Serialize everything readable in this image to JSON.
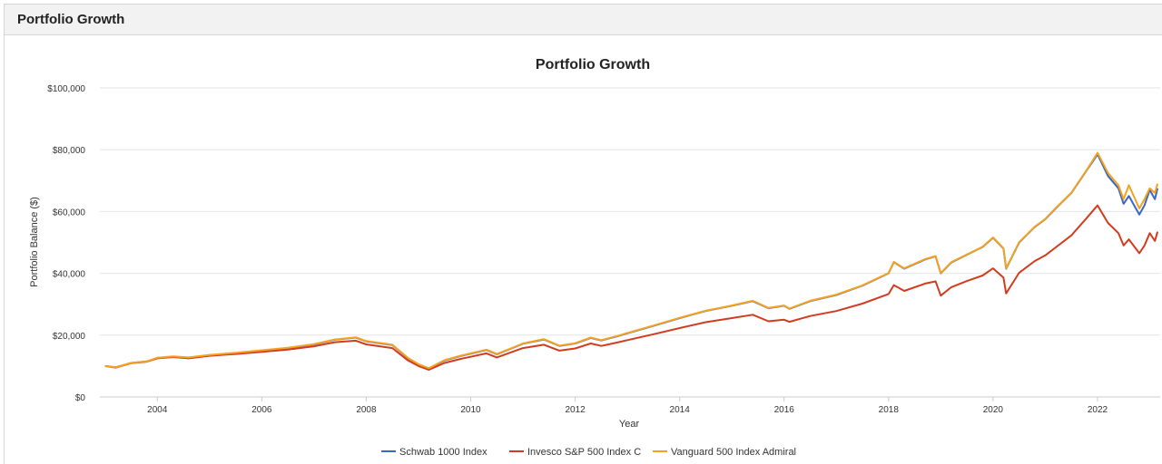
{
  "panel": {
    "title": "Portfolio Growth"
  },
  "chart_data": {
    "type": "line",
    "title": "Portfolio Growth",
    "xlabel": "Year",
    "ylabel": "Portfolio Balance ($)",
    "xlim": [
      2002.9,
      2023.2
    ],
    "ylim": [
      0,
      100000
    ],
    "x_ticks": [
      2004,
      2006,
      2008,
      2010,
      2012,
      2014,
      2016,
      2018,
      2020,
      2022
    ],
    "y_ticks": [
      0,
      20000,
      40000,
      60000,
      80000,
      100000
    ],
    "y_tick_labels": [
      "$0",
      "$20,000",
      "$40,000",
      "$60,000",
      "$80,000",
      "$100,000"
    ],
    "grid": true,
    "legend_position": "bottom-center",
    "series": [
      {
        "name": "Schwab 1000 Index",
        "color": "#3a67c4",
        "points": [
          [
            2003.0,
            10000
          ],
          [
            2003.2,
            9600
          ],
          [
            2003.5,
            11000
          ],
          [
            2003.8,
            11500
          ],
          [
            2004.0,
            12600
          ],
          [
            2004.3,
            13000
          ],
          [
            2004.6,
            12700
          ],
          [
            2005.0,
            13500
          ],
          [
            2005.5,
            14200
          ],
          [
            2006.0,
            15000
          ],
          [
            2006.5,
            15800
          ],
          [
            2007.0,
            17000
          ],
          [
            2007.4,
            18500
          ],
          [
            2007.8,
            19200
          ],
          [
            2008.0,
            18000
          ],
          [
            2008.5,
            16800
          ],
          [
            2008.8,
            12500
          ],
          [
            2009.0,
            10500
          ],
          [
            2009.2,
            9200
          ],
          [
            2009.5,
            11800
          ],
          [
            2009.8,
            13200
          ],
          [
            2010.0,
            14000
          ],
          [
            2010.3,
            15200
          ],
          [
            2010.5,
            13800
          ],
          [
            2010.8,
            15800
          ],
          [
            2011.0,
            17200
          ],
          [
            2011.4,
            18600
          ],
          [
            2011.7,
            16500
          ],
          [
            2012.0,
            17300
          ],
          [
            2012.3,
            19100
          ],
          [
            2012.5,
            18300
          ],
          [
            2012.8,
            19600
          ],
          [
            2013.0,
            20600
          ],
          [
            2013.5,
            23000
          ],
          [
            2014.0,
            25500
          ],
          [
            2014.5,
            27800
          ],
          [
            2015.0,
            29500
          ],
          [
            2015.4,
            31000
          ],
          [
            2015.7,
            28700
          ],
          [
            2016.0,
            29500
          ],
          [
            2016.1,
            28500
          ],
          [
            2016.5,
            31000
          ],
          [
            2017.0,
            33000
          ],
          [
            2017.5,
            36000
          ],
          [
            2018.0,
            40000
          ],
          [
            2018.1,
            43600
          ],
          [
            2018.3,
            41500
          ],
          [
            2018.7,
            44500
          ],
          [
            2018.9,
            45500
          ],
          [
            2019.0,
            40000
          ],
          [
            2019.2,
            43500
          ],
          [
            2019.5,
            46000
          ],
          [
            2019.8,
            48500
          ],
          [
            2020.0,
            51500
          ],
          [
            2020.2,
            48000
          ],
          [
            2020.25,
            41500
          ],
          [
            2020.5,
            50000
          ],
          [
            2020.8,
            55000
          ],
          [
            2021.0,
            57500
          ],
          [
            2021.2,
            61000
          ],
          [
            2021.5,
            66000
          ],
          [
            2021.8,
            73500
          ],
          [
            2022.0,
            78500
          ],
          [
            2022.2,
            71500
          ],
          [
            2022.4,
            67500
          ],
          [
            2022.5,
            62500
          ],
          [
            2022.6,
            65000
          ],
          [
            2022.8,
            59000
          ],
          [
            2022.9,
            62000
          ],
          [
            2023.0,
            67000
          ],
          [
            2023.1,
            64000
          ],
          [
            2023.15,
            67500
          ]
        ]
      },
      {
        "name": "Invesco S&P 500 Index C",
        "color": "#d13c1f",
        "points": [
          [
            2003.0,
            10000
          ],
          [
            2003.2,
            9500
          ],
          [
            2003.5,
            10900
          ],
          [
            2003.8,
            11400
          ],
          [
            2004.0,
            12500
          ],
          [
            2004.3,
            12900
          ],
          [
            2004.6,
            12500
          ],
          [
            2005.0,
            13300
          ],
          [
            2005.5,
            13900
          ],
          [
            2006.0,
            14600
          ],
          [
            2006.5,
            15300
          ],
          [
            2007.0,
            16400
          ],
          [
            2007.4,
            17700
          ],
          [
            2007.8,
            18200
          ],
          [
            2008.0,
            17000
          ],
          [
            2008.5,
            15800
          ],
          [
            2008.8,
            11800
          ],
          [
            2009.0,
            10000
          ],
          [
            2009.2,
            8800
          ],
          [
            2009.5,
            11000
          ],
          [
            2009.8,
            12300
          ],
          [
            2010.0,
            13000
          ],
          [
            2010.3,
            14100
          ],
          [
            2010.5,
            12800
          ],
          [
            2010.8,
            14600
          ],
          [
            2011.0,
            15800
          ],
          [
            2011.4,
            16900
          ],
          [
            2011.7,
            15000
          ],
          [
            2012.0,
            15700
          ],
          [
            2012.3,
            17300
          ],
          [
            2012.5,
            16500
          ],
          [
            2012.8,
            17600
          ],
          [
            2013.0,
            18400
          ],
          [
            2013.5,
            20300
          ],
          [
            2014.0,
            22300
          ],
          [
            2014.5,
            24200
          ],
          [
            2015.0,
            25500
          ],
          [
            2015.4,
            26600
          ],
          [
            2015.7,
            24500
          ],
          [
            2016.0,
            25000
          ],
          [
            2016.1,
            24300
          ],
          [
            2016.5,
            26200
          ],
          [
            2017.0,
            27800
          ],
          [
            2017.5,
            30200
          ],
          [
            2018.0,
            33300
          ],
          [
            2018.1,
            36200
          ],
          [
            2018.3,
            34300
          ],
          [
            2018.7,
            36700
          ],
          [
            2018.9,
            37400
          ],
          [
            2019.0,
            32800
          ],
          [
            2019.2,
            35500
          ],
          [
            2019.5,
            37500
          ],
          [
            2019.8,
            39300
          ],
          [
            2020.0,
            41600
          ],
          [
            2020.2,
            38600
          ],
          [
            2020.25,
            33500
          ],
          [
            2020.5,
            40200
          ],
          [
            2020.8,
            44000
          ],
          [
            2021.0,
            45800
          ],
          [
            2021.2,
            48400
          ],
          [
            2021.5,
            52300
          ],
          [
            2021.8,
            58000
          ],
          [
            2022.0,
            62000
          ],
          [
            2022.2,
            56300
          ],
          [
            2022.4,
            53000
          ],
          [
            2022.5,
            49000
          ],
          [
            2022.6,
            51000
          ],
          [
            2022.8,
            46500
          ],
          [
            2022.9,
            49000
          ],
          [
            2023.0,
            53000
          ],
          [
            2023.1,
            50500
          ],
          [
            2023.15,
            53500
          ]
        ]
      },
      {
        "name": "Vanguard 500 Index Admiral",
        "color": "#f4a21f",
        "points": [
          [
            2003.0,
            10000
          ],
          [
            2003.2,
            9600
          ],
          [
            2003.5,
            11000
          ],
          [
            2003.8,
            11500
          ],
          [
            2004.0,
            12700
          ],
          [
            2004.3,
            13100
          ],
          [
            2004.6,
            12800
          ],
          [
            2005.0,
            13600
          ],
          [
            2005.5,
            14300
          ],
          [
            2006.0,
            15100
          ],
          [
            2006.5,
            15900
          ],
          [
            2007.0,
            17100
          ],
          [
            2007.4,
            18600
          ],
          [
            2007.8,
            19300
          ],
          [
            2008.0,
            18100
          ],
          [
            2008.5,
            16900
          ],
          [
            2008.8,
            12600
          ],
          [
            2009.0,
            10600
          ],
          [
            2009.2,
            9300
          ],
          [
            2009.5,
            11900
          ],
          [
            2009.8,
            13300
          ],
          [
            2010.0,
            14100
          ],
          [
            2010.3,
            15300
          ],
          [
            2010.5,
            13900
          ],
          [
            2010.8,
            15900
          ],
          [
            2011.0,
            17300
          ],
          [
            2011.4,
            18700
          ],
          [
            2011.7,
            16600
          ],
          [
            2012.0,
            17400
          ],
          [
            2012.3,
            19200
          ],
          [
            2012.5,
            18400
          ],
          [
            2012.8,
            19700
          ],
          [
            2013.0,
            20700
          ],
          [
            2013.5,
            23100
          ],
          [
            2014.0,
            25600
          ],
          [
            2014.5,
            27900
          ],
          [
            2015.0,
            29600
          ],
          [
            2015.4,
            31100
          ],
          [
            2015.7,
            28800
          ],
          [
            2016.0,
            29600
          ],
          [
            2016.1,
            28600
          ],
          [
            2016.5,
            31100
          ],
          [
            2017.0,
            33100
          ],
          [
            2017.5,
            36100
          ],
          [
            2018.0,
            40100
          ],
          [
            2018.1,
            43700
          ],
          [
            2018.3,
            41600
          ],
          [
            2018.7,
            44600
          ],
          [
            2018.9,
            45600
          ],
          [
            2019.0,
            40100
          ],
          [
            2019.2,
            43600
          ],
          [
            2019.5,
            46100
          ],
          [
            2019.8,
            48600
          ],
          [
            2020.0,
            51600
          ],
          [
            2020.2,
            48100
          ],
          [
            2020.25,
            41600
          ],
          [
            2020.5,
            50100
          ],
          [
            2020.8,
            55100
          ],
          [
            2021.0,
            57600
          ],
          [
            2021.2,
            61100
          ],
          [
            2021.5,
            66100
          ],
          [
            2021.8,
            73600
          ],
          [
            2022.0,
            79000
          ],
          [
            2022.2,
            72500
          ],
          [
            2022.4,
            68500
          ],
          [
            2022.5,
            64000
          ],
          [
            2022.6,
            68500
          ],
          [
            2022.8,
            61000
          ],
          [
            2022.9,
            64000
          ],
          [
            2023.0,
            67500
          ],
          [
            2023.1,
            66000
          ],
          [
            2023.15,
            69000
          ]
        ]
      }
    ]
  }
}
